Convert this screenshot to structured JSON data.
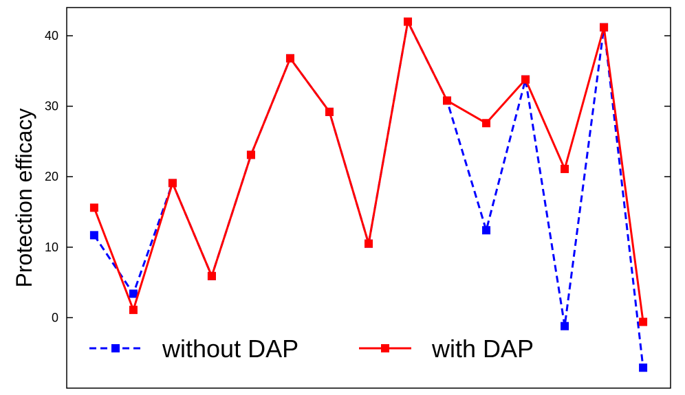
{
  "chart_data": {
    "type": "line",
    "ylabel": "Protection efficacy",
    "xlabel": "",
    "ylim": [
      -10,
      44
    ],
    "yticks": [
      0,
      10,
      20,
      30,
      40
    ],
    "xlim": [
      0.3,
      15.7
    ],
    "grid": false,
    "legend_position": "bottom",
    "x": [
      1,
      2,
      3,
      4,
      5,
      6,
      7,
      8,
      9,
      10,
      11,
      12,
      13,
      14,
      15
    ],
    "series": [
      {
        "name": "without DAP",
        "values": [
          11.7,
          3.4,
          19.1,
          5.9,
          23.1,
          36.8,
          29.2,
          10.5,
          42.0,
          30.8,
          12.4,
          33.8,
          -1.2,
          41.2,
          -7.1
        ],
        "color": "#0000ff",
        "line_style": "dashed",
        "marker": "square"
      },
      {
        "name": "with DAP",
        "values": [
          15.6,
          1.1,
          19.1,
          5.9,
          23.1,
          36.8,
          29.2,
          10.5,
          42.0,
          30.8,
          27.6,
          33.8,
          21.1,
          41.2,
          -0.6
        ],
        "color": "#ff0000",
        "line_style": "solid",
        "marker": "square"
      }
    ]
  }
}
